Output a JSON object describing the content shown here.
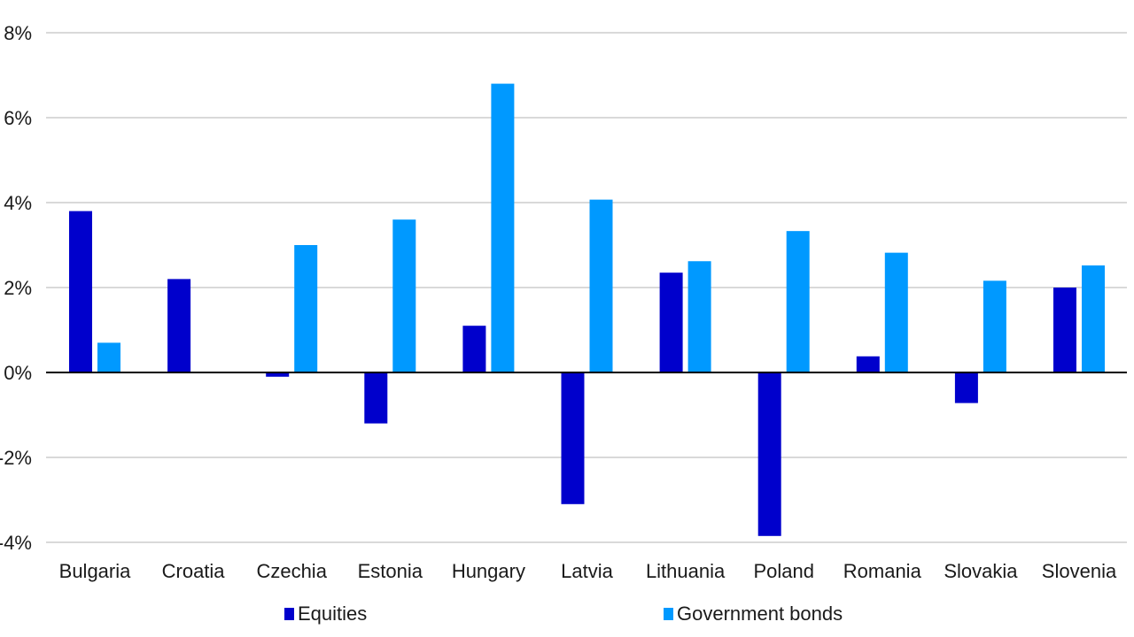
{
  "chart_data": {
    "type": "bar",
    "categories": [
      "Bulgaria",
      "Croatia",
      "Czechia",
      "Estonia",
      "Hungary",
      "Latvia",
      "Lithuania",
      "Poland",
      "Romania",
      "Slovakia",
      "Slovenia"
    ],
    "series": [
      {
        "name": "Equities",
        "color": "#0000CC",
        "values": [
          3.8,
          2.2,
          -0.1,
          -1.2,
          1.1,
          -3.1,
          2.35,
          -3.85,
          0.38,
          -0.72,
          2.0
        ]
      },
      {
        "name": "Government bonds",
        "color": "#0099FF",
        "values": [
          0.7,
          null,
          3.0,
          3.6,
          6.8,
          4.07,
          2.62,
          3.33,
          2.82,
          2.16,
          2.52
        ]
      }
    ],
    "yticks": [
      "-4%",
      "-2%",
      "0%",
      "2%",
      "4%",
      "6%",
      "8%"
    ],
    "ylim": [
      -4,
      8
    ],
    "grid": true,
    "legend_position": "bottom"
  }
}
